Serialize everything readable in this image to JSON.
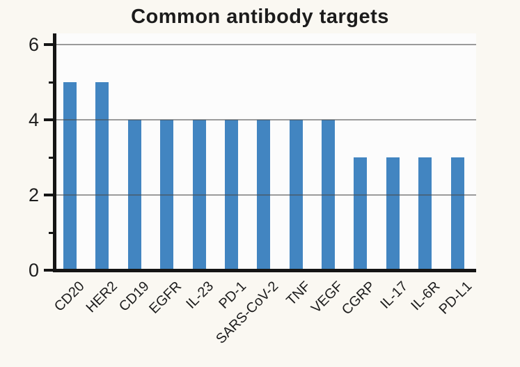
{
  "chart_data": {
    "type": "bar",
    "title": "Common antibody targets",
    "categories": [
      "CD20",
      "HER2",
      "CD19",
      "EGFR",
      "IL-23",
      "PD-1",
      "SARS-CoV-2",
      "TNF",
      "VEGF",
      "CGRP",
      "IL-17",
      "IL-6R",
      "PD-L1"
    ],
    "values": [
      5,
      5,
      4,
      4,
      4,
      4,
      4,
      4,
      4,
      3,
      3,
      3,
      3
    ],
    "xlabel": "",
    "ylabel": "",
    "ylim": [
      0,
      6
    ],
    "yticks": [
      0,
      2,
      4,
      6
    ],
    "minor_yticks": [
      1,
      3,
      5
    ],
    "grid": "horizontal-at-major-yticks",
    "legend": "none",
    "colors": {
      "bar": "#4285c1",
      "axis": "#151515",
      "grid": "#8a8a8a",
      "text": "#1d1d1d",
      "background_outer": "#faf8f2",
      "background_plot": "#fcfcfc"
    }
  }
}
